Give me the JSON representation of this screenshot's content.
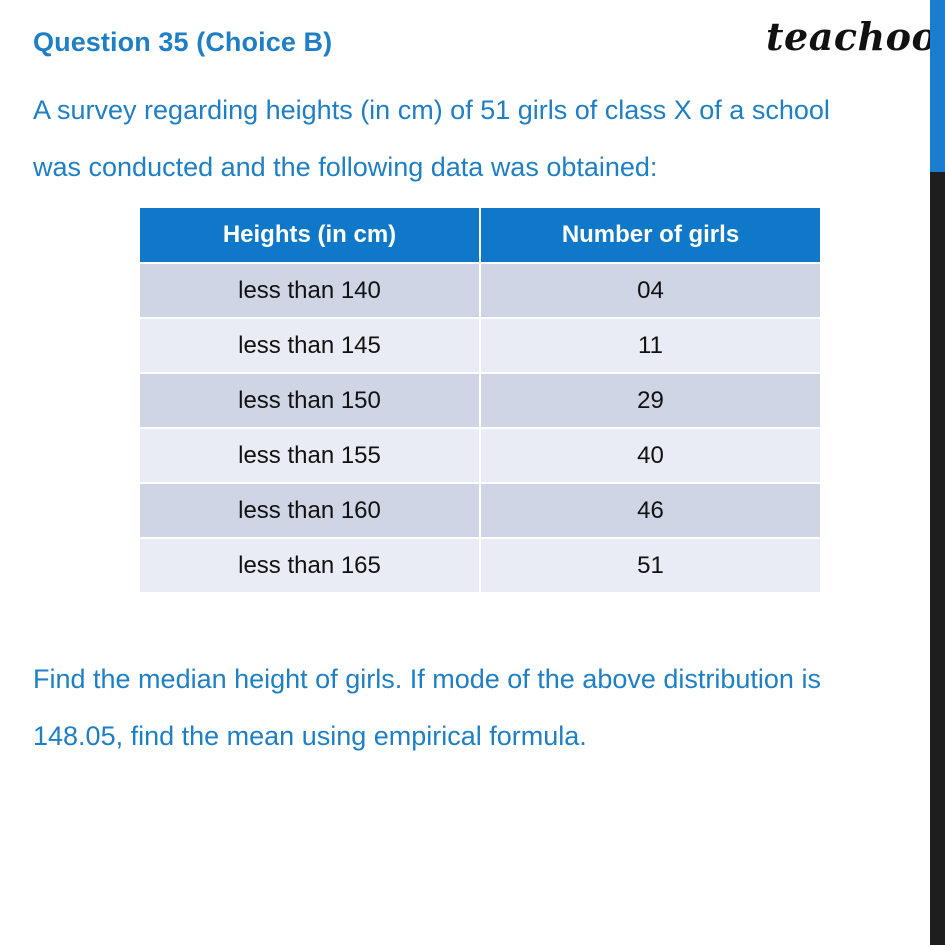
{
  "header": {
    "question_label": "Question 35 (Choice B)",
    "brand": "teachoo"
  },
  "question": {
    "line1": "A survey regarding heights (in cm) of 51 girls of class X of a school",
    "line2": "was conducted and the following data was obtained:"
  },
  "table": {
    "headers": [
      "Heights (in cm)",
      "Number of girls"
    ],
    "rows": [
      [
        "less than 140",
        "04"
      ],
      [
        "less than 145",
        "11"
      ],
      [
        "less than 150",
        "29"
      ],
      [
        "less than 155",
        "40"
      ],
      [
        "less than 160",
        "46"
      ],
      [
        "less than 165",
        "51"
      ]
    ]
  },
  "followup": {
    "line1": "Find the median height of girls. If mode of the above distribution is",
    "line2": "148.05, find the mean using empirical formula."
  },
  "colors": {
    "text_blue": "#1f7fc4",
    "header_blue": "#0f78c8",
    "row_dark": "#cfd5e5",
    "row_light": "#e9ecf4",
    "scroll_thumb": "#1b7dd0"
  }
}
